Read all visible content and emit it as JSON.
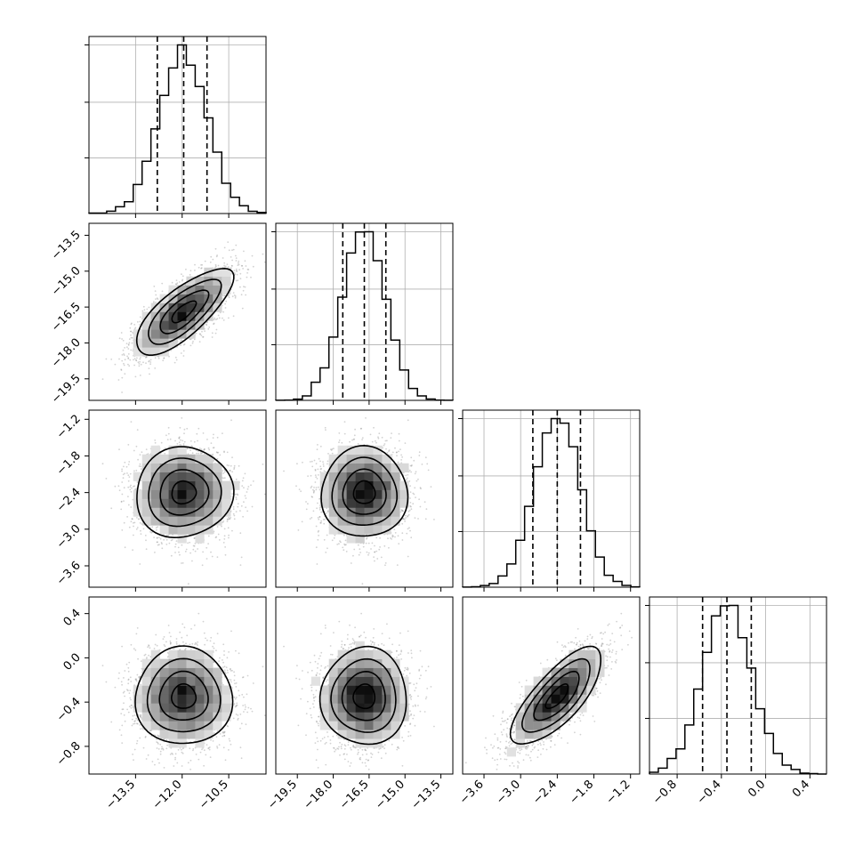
{
  "chart_data": {
    "type": "corner",
    "parameters": [
      {
        "mean": -11.95,
        "sd": 0.78,
        "range": [
          -15.0,
          -9.3
        ],
        "ticks": [
          -13.5,
          -12.0,
          -10.5
        ],
        "tick_labels": [
          "−13.5",
          "−12.0",
          "−10.5"
        ],
        "quantiles": [
          -12.8,
          -11.95,
          -11.2
        ]
      },
      {
        "mean": -16.7,
        "sd": 0.9,
        "range": [
          -20.4,
          -13.0
        ],
        "ticks": [
          -19.5,
          -18.0,
          -16.5,
          -15.0,
          -13.5
        ],
        "tick_labels": [
          "−19.5",
          "−18.0",
          "−16.5",
          "−15.0",
          "−13.5"
        ],
        "quantiles": [
          -17.6,
          -16.7,
          -15.8
        ]
      },
      {
        "mean": -2.4,
        "sd": 0.37,
        "range": [
          -3.95,
          -1.05
        ],
        "ticks": [
          -3.6,
          -3.0,
          -2.4,
          -1.8,
          -1.2
        ],
        "tick_labels": [
          "−3.6",
          "−3.0",
          "−2.4",
          "−1.8",
          "−1.2"
        ],
        "quantiles": [
          -2.8,
          -2.4,
          -2.02
        ]
      },
      {
        "mean": -0.35,
        "sd": 0.22,
        "range": [
          -1.05,
          0.55
        ],
        "ticks": [
          -0.8,
          -0.4,
          0.0,
          0.4
        ],
        "tick_labels": [
          "−0.8",
          "−0.4",
          "0.0",
          "0.4"
        ],
        "quantiles": [
          -0.57,
          -0.35,
          -0.13
        ]
      }
    ],
    "correlations": [
      [
        0,
        1,
        0.75
      ],
      [
        0,
        2,
        0.05
      ],
      [
        1,
        2,
        0.0
      ],
      [
        0,
        3,
        0.0
      ],
      [
        1,
        3,
        0.0
      ],
      [
        2,
        3,
        0.75
      ]
    ],
    "n_samples": 8000,
    "colors": {
      "line": "#000000",
      "density": "#000000",
      "scatter": "#7f7f7f",
      "grid": "#b0b0b0"
    },
    "grid": true,
    "title": "",
    "xlabel": "",
    "ylabel": ""
  }
}
